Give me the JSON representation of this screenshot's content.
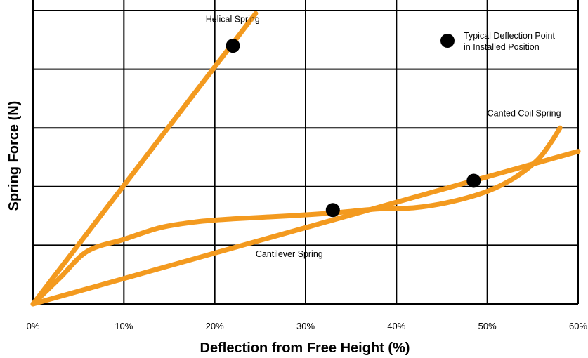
{
  "chart_data": {
    "type": "line",
    "title": "",
    "xlabel": "Deflection from Free Height (%)",
    "ylabel": "Spring Force (N)",
    "xlim": [
      0,
      60
    ],
    "ylim": [
      0,
      5
    ],
    "x_ticks": [
      0,
      10,
      20,
      30,
      40,
      50,
      60
    ],
    "x_tick_labels": [
      "0%",
      "10%",
      "20%",
      "30%",
      "40%",
      "50%",
      "60%"
    ],
    "y_tick_labels": [],
    "grid": true,
    "series_color": "#f39a1f",
    "marker_color": "#000000",
    "series": [
      {
        "name": "Helical Spring",
        "points": [
          [
            0,
            0
          ],
          [
            24.5,
            4.95
          ]
        ]
      },
      {
        "name": "Cantilever Spring",
        "points": [
          [
            0,
            0
          ],
          [
            60,
            2.6
          ]
        ]
      },
      {
        "name": "Canted Coil Spring",
        "points": [
          [
            0,
            0
          ],
          [
            3,
            0.45
          ],
          [
            6,
            0.9
          ],
          [
            10,
            1.1
          ],
          [
            14,
            1.3
          ],
          [
            18,
            1.4
          ],
          [
            22,
            1.45
          ],
          [
            28,
            1.5
          ],
          [
            33,
            1.55
          ],
          [
            38,
            1.62
          ],
          [
            42,
            1.64
          ],
          [
            46,
            1.74
          ],
          [
            50,
            1.92
          ],
          [
            53,
            2.15
          ],
          [
            55.5,
            2.45
          ],
          [
            57,
            2.75
          ],
          [
            58,
            3.0
          ]
        ]
      }
    ],
    "annotations": [
      {
        "text": "Helical Spring",
        "x": 19.0,
        "y": 4.8,
        "anchor": "start"
      },
      {
        "text": "Canted Coil Spring",
        "x": 50.0,
        "y": 3.2,
        "anchor": "start"
      },
      {
        "text": "Cantilever Spring",
        "x": 24.5,
        "y": 0.8,
        "anchor": "start"
      }
    ],
    "deflection_points": [
      {
        "x": 22,
        "y": 4.4
      },
      {
        "x": 33,
        "y": 1.6
      },
      {
        "x": 48.5,
        "y": 2.1
      }
    ],
    "legend": {
      "position": "top-right",
      "line1": "Typical Deflection Point",
      "line2": "in Installed Position"
    }
  }
}
